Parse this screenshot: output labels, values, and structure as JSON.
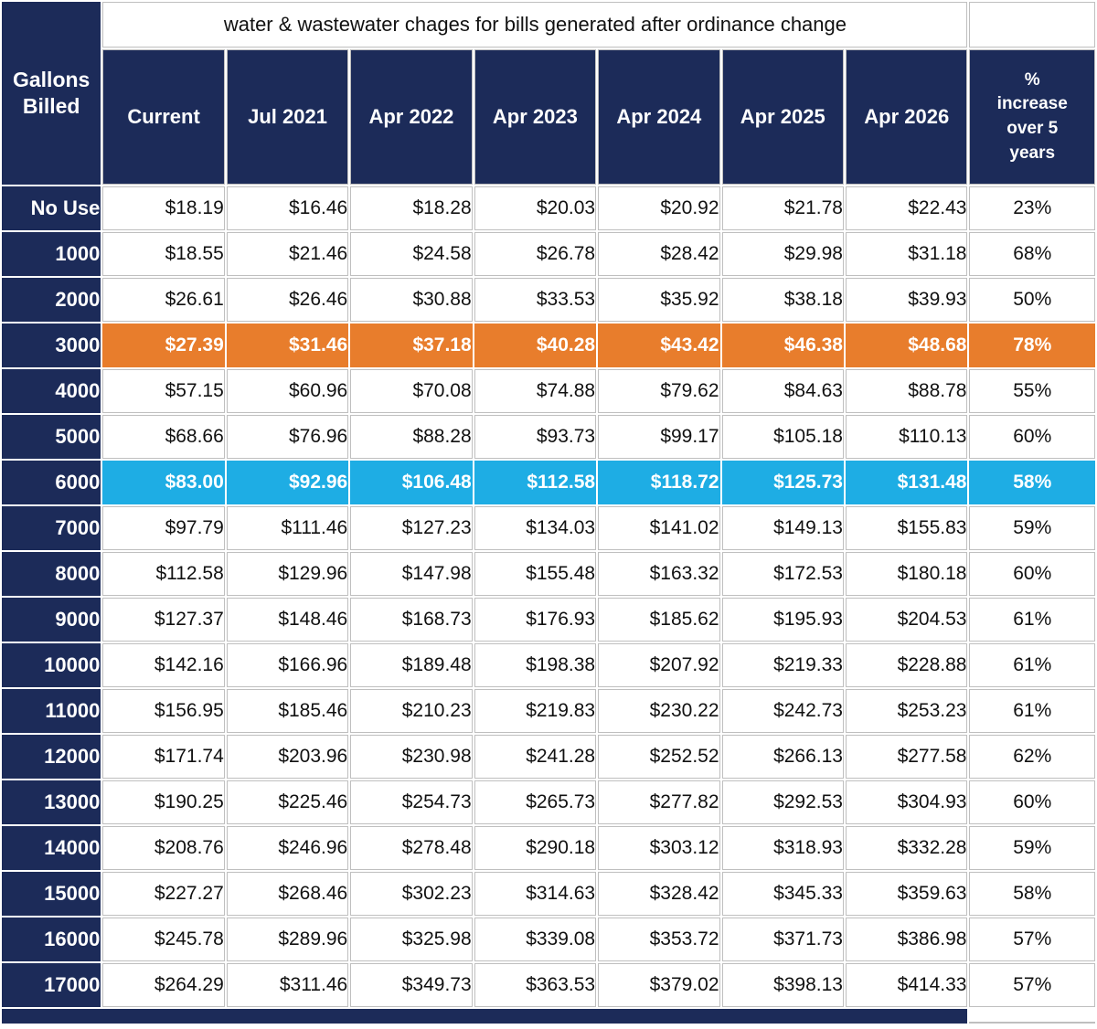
{
  "chart_data": {
    "type": "table",
    "title": "water & wastewater chages for bills generated after ordinance change",
    "row_header": "Gallons Billed",
    "columns": [
      "Current",
      "Jul 2021",
      "Apr 2022",
      "Apr 2023",
      "Apr 2024",
      "Apr 2025",
      "Apr 2026"
    ],
    "pct_header": "% increase over 5 years",
    "rows": [
      {
        "gallons": "No Use",
        "charges": [
          "$18.19",
          "$16.46",
          "$18.28",
          "$20.03",
          "$20.92",
          "$21.78",
          "$22.43"
        ],
        "pct_increase": "23%",
        "highlight": "none"
      },
      {
        "gallons": "1000",
        "charges": [
          "$18.55",
          "$21.46",
          "$24.58",
          "$26.78",
          "$28.42",
          "$29.98",
          "$31.18"
        ],
        "pct_increase": "68%",
        "highlight": "none"
      },
      {
        "gallons": "2000",
        "charges": [
          "$26.61",
          "$26.46",
          "$30.88",
          "$33.53",
          "$35.92",
          "$38.18",
          "$39.93"
        ],
        "pct_increase": "50%",
        "highlight": "none"
      },
      {
        "gallons": "3000",
        "charges": [
          "$27.39",
          "$31.46",
          "$37.18",
          "$40.28",
          "$43.42",
          "$46.38",
          "$48.68"
        ],
        "pct_increase": "78%",
        "highlight": "orange"
      },
      {
        "gallons": "4000",
        "charges": [
          "$57.15",
          "$60.96",
          "$70.08",
          "$74.88",
          "$79.62",
          "$84.63",
          "$88.78"
        ],
        "pct_increase": "55%",
        "highlight": "none"
      },
      {
        "gallons": "5000",
        "charges": [
          "$68.66",
          "$76.96",
          "$88.28",
          "$93.73",
          "$99.17",
          "$105.18",
          "$110.13"
        ],
        "pct_increase": "60%",
        "highlight": "none"
      },
      {
        "gallons": "6000",
        "charges": [
          "$83.00",
          "$92.96",
          "$106.48",
          "$112.58",
          "$118.72",
          "$125.73",
          "$131.48"
        ],
        "pct_increase": "58%",
        "highlight": "blue"
      },
      {
        "gallons": "7000",
        "charges": [
          "$97.79",
          "$111.46",
          "$127.23",
          "$134.03",
          "$141.02",
          "$149.13",
          "$155.83"
        ],
        "pct_increase": "59%",
        "highlight": "none"
      },
      {
        "gallons": "8000",
        "charges": [
          "$112.58",
          "$129.96",
          "$147.98",
          "$155.48",
          "$163.32",
          "$172.53",
          "$180.18"
        ],
        "pct_increase": "60%",
        "highlight": "none"
      },
      {
        "gallons": "9000",
        "charges": [
          "$127.37",
          "$148.46",
          "$168.73",
          "$176.93",
          "$185.62",
          "$195.93",
          "$204.53"
        ],
        "pct_increase": "61%",
        "highlight": "none"
      },
      {
        "gallons": "10000",
        "charges": [
          "$142.16",
          "$166.96",
          "$189.48",
          "$198.38",
          "$207.92",
          "$219.33",
          "$228.88"
        ],
        "pct_increase": "61%",
        "highlight": "none"
      },
      {
        "gallons": "11000",
        "charges": [
          "$156.95",
          "$185.46",
          "$210.23",
          "$219.83",
          "$230.22",
          "$242.73",
          "$253.23"
        ],
        "pct_increase": "61%",
        "highlight": "none"
      },
      {
        "gallons": "12000",
        "charges": [
          "$171.74",
          "$203.96",
          "$230.98",
          "$241.28",
          "$252.52",
          "$266.13",
          "$277.58"
        ],
        "pct_increase": "62%",
        "highlight": "none"
      },
      {
        "gallons": "13000",
        "charges": [
          "$190.25",
          "$225.46",
          "$254.73",
          "$265.73",
          "$277.82",
          "$292.53",
          "$304.93"
        ],
        "pct_increase": "60%",
        "highlight": "none"
      },
      {
        "gallons": "14000",
        "charges": [
          "$208.76",
          "$246.96",
          "$278.48",
          "$290.18",
          "$303.12",
          "$318.93",
          "$332.28"
        ],
        "pct_increase": "59%",
        "highlight": "none"
      },
      {
        "gallons": "15000",
        "charges": [
          "$227.27",
          "$268.46",
          "$302.23",
          "$314.63",
          "$328.42",
          "$345.33",
          "$359.63"
        ],
        "pct_increase": "58%",
        "highlight": "none"
      },
      {
        "gallons": "16000",
        "charges": [
          "$245.78",
          "$289.96",
          "$325.98",
          "$339.08",
          "$353.72",
          "$371.73",
          "$386.98"
        ],
        "pct_increase": "57%",
        "highlight": "none"
      },
      {
        "gallons": "17000",
        "charges": [
          "$264.29",
          "$311.46",
          "$349.73",
          "$363.53",
          "$379.02",
          "$398.13",
          "$414.33"
        ],
        "pct_increase": "57%",
        "highlight": "none"
      }
    ],
    "colors": {
      "header_navy": "#1c2b59",
      "highlight_orange": "#e87d2c",
      "highlight_blue": "#1eade4",
      "grid_gray": "#bfbfbf",
      "header_text": "#ffffff",
      "body_text": "#111111"
    },
    "layout": {
      "grid": true,
      "highlighted_rows": [
        "3000",
        "6000"
      ]
    }
  }
}
